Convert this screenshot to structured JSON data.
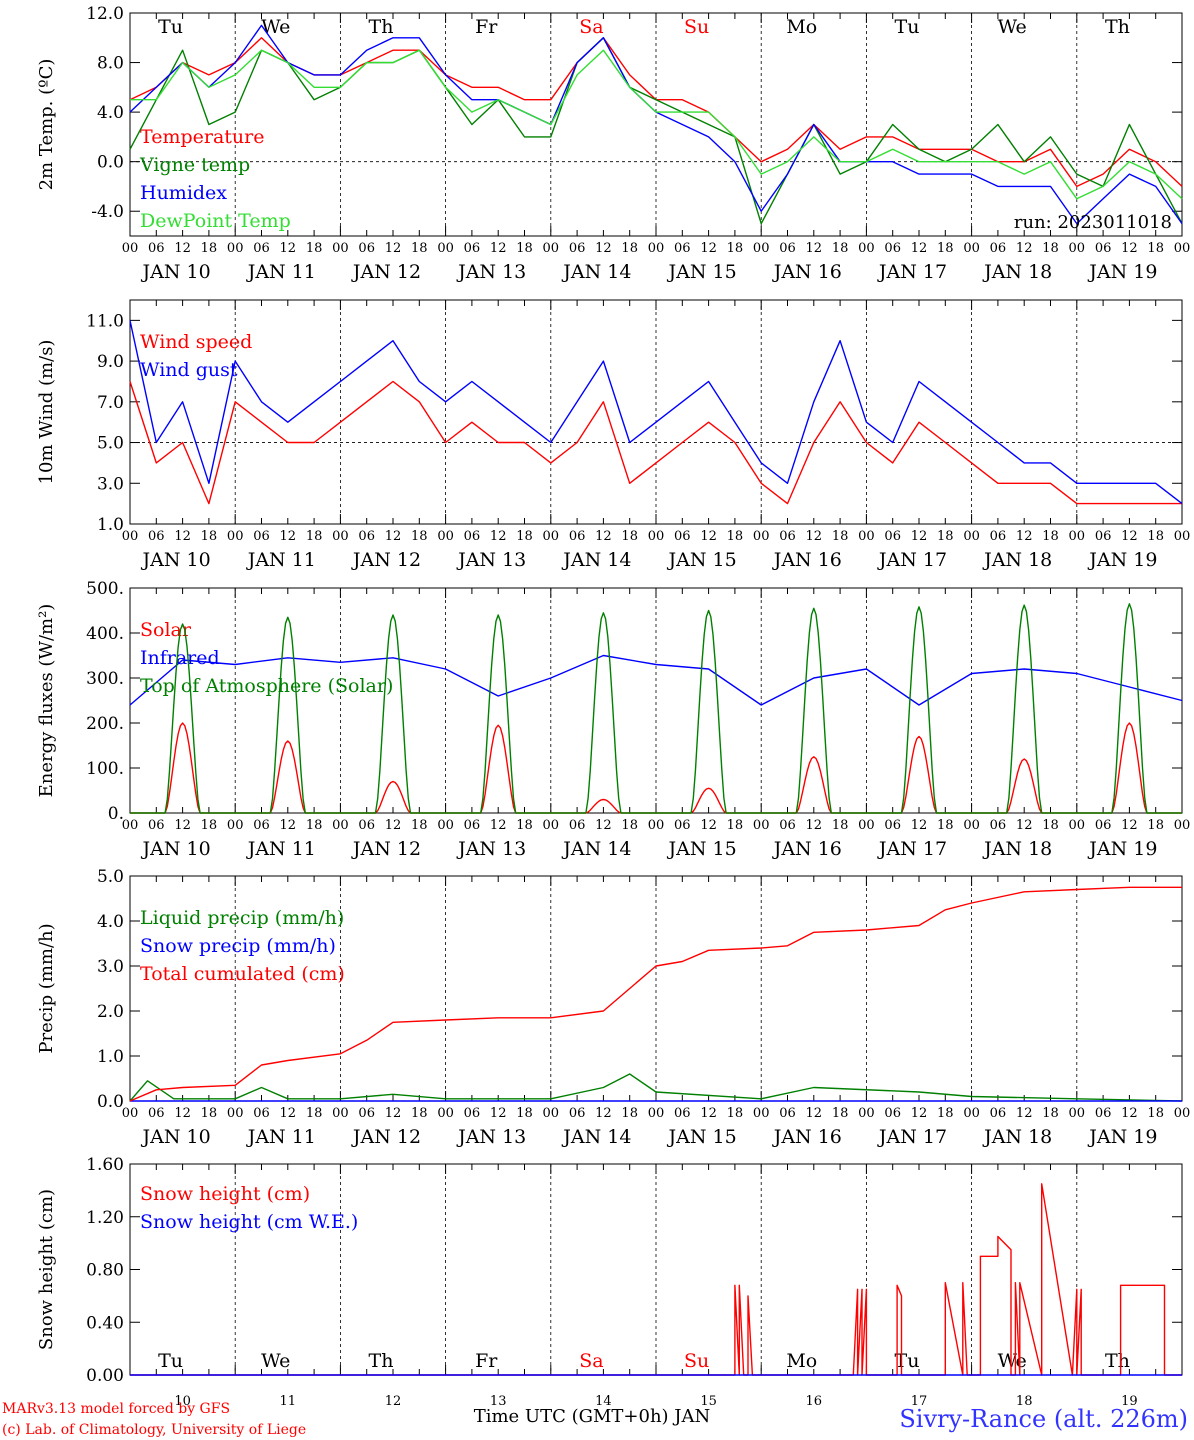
{
  "footer": {
    "model_line": "MARv3.13 model forced by GFS",
    "copyright_line": "(c) Lab. of Climatology, University of Liege",
    "xlabel": "Time UTC (GMT+0h) JAN",
    "station": "Sivry-Rance (alt. 226m)"
  },
  "colors": {
    "red": "#ff0000",
    "green": "#008000",
    "blue": "#0000ff",
    "lightgreen": "#33dd33",
    "weekend": "#ff0000",
    "weekday": "#000000"
  },
  "chart_data": [
    {
      "type": "line",
      "ylabel": "2m Temp. (ºC)",
      "ylim": [
        -6,
        12
      ],
      "yticks": [
        "-4.0",
        "0.0",
        "4.0",
        "8.0",
        "12.0"
      ],
      "ytick_values": [
        -4,
        0,
        4,
        8,
        12
      ],
      "hline": 0,
      "day_labels": [
        "Tu",
        "We",
        "Th",
        "Fr",
        "Sa",
        "Su",
        "Mo",
        "Tu",
        "We",
        "Th"
      ],
      "date_labels": [
        "JAN 10",
        "JAN 11",
        "JAN 12",
        "JAN 13",
        "JAN 14",
        "JAN 15",
        "JAN 16",
        "JAN 17",
        "JAN 18",
        "JAN 19"
      ],
      "hour_labels": [
        "00",
        "06",
        "12",
        "18"
      ],
      "annotation": "run: 2023011018",
      "legend_position": "top-left",
      "series": [
        {
          "name": "Temperature",
          "color": "#ff0000",
          "x": [
            0,
            6,
            12,
            18,
            24,
            30,
            36,
            42,
            48,
            54,
            60,
            66,
            72,
            78,
            84,
            90,
            96,
            102,
            108,
            114,
            120,
            126,
            132,
            138,
            144,
            150,
            156,
            162,
            168,
            174,
            180,
            186,
            192,
            198,
            204,
            210,
            216,
            222,
            228,
            234,
            240
          ],
          "values": [
            5,
            6,
            8,
            7,
            8,
            10,
            8,
            7,
            7,
            8,
            9,
            9,
            7,
            6,
            6,
            5,
            5,
            8,
            10,
            7,
            5,
            5,
            4,
            2,
            0,
            1,
            3,
            1,
            2,
            2,
            1,
            1,
            1,
            0,
            0,
            1,
            -2,
            -1,
            1,
            0,
            -2
          ]
        },
        {
          "name": "Vigne temp",
          "color": "#008000",
          "x": [
            0,
            6,
            12,
            18,
            24,
            30,
            36,
            42,
            48,
            54,
            60,
            66,
            72,
            78,
            84,
            90,
            96,
            102,
            108,
            114,
            120,
            126,
            132,
            138,
            144,
            150,
            156,
            162,
            168,
            174,
            180,
            186,
            192,
            198,
            204,
            210,
            216,
            222,
            228,
            234,
            240
          ],
          "values": [
            1,
            5,
            9,
            3,
            4,
            9,
            8,
            5,
            6,
            8,
            8,
            9,
            6,
            3,
            5,
            2,
            2,
            8,
            10,
            6,
            5,
            4,
            3,
            2,
            -5,
            -1,
            3,
            -1,
            0,
            3,
            1,
            0,
            1,
            3,
            0,
            2,
            -1,
            -2,
            3,
            -1,
            -5
          ]
        },
        {
          "name": "Humidex",
          "color": "#0000ff",
          "x": [
            0,
            6,
            12,
            18,
            24,
            30,
            36,
            42,
            48,
            54,
            60,
            66,
            72,
            78,
            84,
            90,
            96,
            102,
            108,
            114,
            120,
            126,
            132,
            138,
            144,
            150,
            156,
            162,
            168,
            174,
            180,
            186,
            192,
            198,
            204,
            210,
            216,
            222,
            228,
            234,
            240
          ],
          "values": [
            4,
            6,
            8,
            6,
            8,
            11,
            8,
            7,
            7,
            9,
            10,
            10,
            7,
            5,
            5,
            4,
            3,
            8,
            10,
            6,
            4,
            3,
            2,
            0,
            -4,
            -1,
            3,
            0,
            0,
            0,
            -1,
            -1,
            -1,
            -2,
            -2,
            -2,
            -5,
            -3,
            -1,
            -2,
            -5
          ]
        },
        {
          "name": "DewPoint Temp",
          "color": "#33dd33",
          "x": [
            0,
            6,
            12,
            18,
            24,
            30,
            36,
            42,
            48,
            54,
            60,
            66,
            72,
            78,
            84,
            90,
            96,
            102,
            108,
            114,
            120,
            126,
            132,
            138,
            144,
            150,
            156,
            162,
            168,
            174,
            180,
            186,
            192,
            198,
            204,
            210,
            216,
            222,
            228,
            234,
            240
          ],
          "values": [
            5,
            5,
            8,
            6,
            7,
            9,
            8,
            6,
            6,
            8,
            8,
            9,
            6,
            4,
            5,
            4,
            3,
            7,
            9,
            6,
            4,
            4,
            4,
            2,
            -1,
            0,
            2,
            0,
            0,
            1,
            0,
            0,
            0,
            0,
            -1,
            0,
            -3,
            -2,
            0,
            -1,
            -3
          ]
        }
      ]
    },
    {
      "type": "line",
      "ylabel": "10m Wind (m/s)",
      "ylim": [
        1,
        12
      ],
      "yticks": [
        "1.0",
        "3.0",
        "5.0",
        "7.0",
        "9.0",
        "11.0"
      ],
      "ytick_values": [
        1,
        3,
        5,
        7,
        9,
        11
      ],
      "hline": 5,
      "date_labels": [
        "JAN 10",
        "JAN 11",
        "JAN 12",
        "JAN 13",
        "JAN 14",
        "JAN 15",
        "JAN 16",
        "JAN 17",
        "JAN 18",
        "JAN 19"
      ],
      "hour_labels": [
        "00",
        "06",
        "12",
        "18"
      ],
      "legend_position": "top-left",
      "series": [
        {
          "name": "Wind speed",
          "color": "#ff0000",
          "x": [
            0,
            6,
            12,
            18,
            24,
            30,
            36,
            42,
            48,
            54,
            60,
            66,
            72,
            78,
            84,
            90,
            96,
            102,
            108,
            114,
            120,
            126,
            132,
            138,
            144,
            150,
            156,
            162,
            168,
            174,
            180,
            186,
            192,
            198,
            204,
            210,
            216,
            222,
            228,
            234,
            240
          ],
          "values": [
            8,
            4,
            5,
            2,
            7,
            6,
            5,
            5,
            6,
            7,
            8,
            7,
            5,
            6,
            5,
            5,
            4,
            5,
            7,
            3,
            4,
            5,
            6,
            5,
            3,
            2,
            5,
            7,
            5,
            4,
            6,
            5,
            4,
            3,
            3,
            3,
            2,
            2,
            2,
            2,
            2
          ]
        },
        {
          "name": "Wind gust",
          "color": "#0000ff",
          "x": [
            0,
            6,
            12,
            18,
            24,
            30,
            36,
            42,
            48,
            54,
            60,
            66,
            72,
            78,
            84,
            90,
            96,
            102,
            108,
            114,
            120,
            126,
            132,
            138,
            144,
            150,
            156,
            162,
            168,
            174,
            180,
            186,
            192,
            198,
            204,
            210,
            216,
            222,
            228,
            234,
            240
          ],
          "values": [
            11,
            5,
            7,
            3,
            9,
            7,
            6,
            7,
            8,
            9,
            10,
            8,
            7,
            8,
            7,
            6,
            5,
            7,
            9,
            5,
            6,
            7,
            8,
            6,
            4,
            3,
            7,
            10,
            6,
            5,
            8,
            7,
            6,
            5,
            4,
            4,
            3,
            3,
            3,
            3,
            2
          ]
        }
      ]
    },
    {
      "type": "line",
      "ylabel": "Energy fluxes (W/m²)",
      "ylim": [
        0,
        500
      ],
      "yticks": [
        "0.",
        "100.",
        "200.",
        "300.",
        "400.",
        "500."
      ],
      "ytick_values": [
        0,
        100,
        200,
        300,
        400,
        500
      ],
      "date_labels": [
        "JAN 10",
        "JAN 11",
        "JAN 12",
        "JAN 13",
        "JAN 14",
        "JAN 15",
        "JAN 16",
        "JAN 17",
        "JAN 18",
        "JAN 19"
      ],
      "hour_labels": [
        "00",
        "06",
        "12",
        "18"
      ],
      "legend_position": "top-left",
      "series": [
        {
          "name": "Solar",
          "color": "#ff0000",
          "daily_peak": [
            200,
            160,
            70,
            195,
            30,
            55,
            125,
            170,
            120,
            200
          ]
        },
        {
          "name": "Infrared",
          "color": "#0000ff",
          "x": [
            0,
            12,
            24,
            36,
            48,
            60,
            72,
            84,
            96,
            108,
            120,
            132,
            144,
            156,
            168,
            180,
            192,
            204,
            216,
            228,
            240
          ],
          "values": [
            240,
            340,
            330,
            345,
            335,
            345,
            320,
            260,
            300,
            350,
            330,
            320,
            240,
            300,
            320,
            240,
            310,
            320,
            310,
            280,
            250
          ]
        },
        {
          "name": "Top of Atmosphere (Solar)",
          "color": "#008000",
          "daily_peak": [
            420,
            435,
            440,
            440,
            445,
            450,
            455,
            458,
            462,
            465
          ]
        }
      ]
    },
    {
      "type": "line",
      "ylabel": "Precip (mm/h)",
      "ylim": [
        0,
        5
      ],
      "yticks": [
        "0.0",
        "1.0",
        "2.0",
        "3.0",
        "4.0",
        "5.0"
      ],
      "ytick_values": [
        0,
        1,
        2,
        3,
        4,
        5
      ],
      "date_labels": [
        "JAN 10",
        "JAN 11",
        "JAN 12",
        "JAN 13",
        "JAN 14",
        "JAN 15",
        "JAN 16",
        "JAN 17",
        "JAN 18",
        "JAN 19"
      ],
      "hour_labels": [
        "00",
        "06",
        "12",
        "18"
      ],
      "legend_position": "top-left",
      "series": [
        {
          "name": "Liquid precip (mm/h)",
          "color": "#008000",
          "x": [
            0,
            4,
            10,
            24,
            30,
            36,
            48,
            60,
            72,
            96,
            108,
            114,
            120,
            144,
            156,
            180,
            192,
            216,
            240
          ],
          "values": [
            0,
            0.45,
            0.05,
            0.05,
            0.3,
            0.05,
            0.05,
            0.15,
            0.05,
            0.05,
            0.3,
            0.6,
            0.2,
            0.05,
            0.3,
            0.2,
            0.1,
            0.05,
            0
          ]
        },
        {
          "name": "Snow precip (mm/h)",
          "color": "#0000ff",
          "x": [
            0,
            240
          ],
          "values": [
            0,
            0
          ]
        },
        {
          "name": "Total cumulated (cm)",
          "color": "#ff0000",
          "x": [
            0,
            6,
            12,
            24,
            30,
            36,
            48,
            54,
            60,
            72,
            84,
            96,
            108,
            114,
            120,
            126,
            132,
            144,
            150,
            156,
            168,
            180,
            186,
            192,
            204,
            216,
            228,
            240
          ],
          "values": [
            0,
            0.25,
            0.3,
            0.35,
            0.8,
            0.9,
            1.05,
            1.35,
            1.75,
            1.8,
            1.85,
            1.85,
            2.0,
            2.5,
            3.0,
            3.1,
            3.35,
            3.4,
            3.45,
            3.75,
            3.8,
            3.9,
            4.25,
            4.4,
            4.65,
            4.7,
            4.75,
            4.75
          ]
        }
      ]
    },
    {
      "type": "line",
      "ylabel": "Snow height (cm)",
      "ylim": [
        0,
        1.6
      ],
      "yticks": [
        "0.00",
        "0.40",
        "0.80",
        "1.20",
        "1.60"
      ],
      "ytick_values": [
        0,
        0.4,
        0.8,
        1.2,
        1.6
      ],
      "day_labels": [
        "Tu",
        "We",
        "Th",
        "Fr",
        "Sa",
        "Su",
        "Mo",
        "Tu",
        "We",
        "Th"
      ],
      "day_label_colors": [
        "#000000",
        "#000000",
        "#000000",
        "#000000",
        "#ff0000",
        "#ff0000",
        "#000000",
        "#000000",
        "#000000",
        "#000000"
      ],
      "date_labels": [
        "10",
        "11",
        "12",
        "13",
        "14",
        "15",
        "16",
        "17",
        "18",
        "19"
      ],
      "legend_position": "top-left",
      "series": [
        {
          "name": "Snow height (cm)",
          "color": "#ff0000",
          "x": [
            0,
            138,
            138,
            139,
            139,
            140,
            140,
            141,
            141,
            142,
            142,
            143,
            143,
            144,
            144,
            165,
            165,
            166,
            166,
            167,
            167,
            168,
            168,
            175,
            175,
            176,
            176,
            186,
            186,
            190,
            190,
            191,
            191,
            194,
            194,
            198,
            198,
            201,
            201,
            202,
            202,
            203,
            203,
            208,
            208,
            215,
            215,
            216,
            216,
            217,
            217,
            218,
            218,
            226,
            226,
            226.5,
            226.5,
            236,
            236,
            240
          ],
          "values": [
            0,
            0,
            0.68,
            0,
            0.68,
            0,
            0,
            0,
            0.6,
            0,
            0,
            0,
            0,
            0,
            0,
            0,
            0,
            0.65,
            0,
            0.65,
            0,
            0.65,
            0,
            0,
            0.68,
            0.6,
            0,
            0,
            0.7,
            0,
            0.7,
            0,
            0,
            0,
            0.9,
            0.9,
            1.05,
            0.95,
            0,
            0,
            0.7,
            0,
            0.7,
            0,
            1.45,
            0,
            0,
            0.65,
            0,
            0.65,
            0,
            0,
            0,
            0,
            0.68,
            0.68,
            0.68,
            0.68,
            0,
            0
          ]
        },
        {
          "name": "Snow height (cm W.E.)",
          "color": "#0000ff",
          "x": [
            0,
            240
          ],
          "values": [
            0,
            0
          ]
        }
      ]
    }
  ]
}
